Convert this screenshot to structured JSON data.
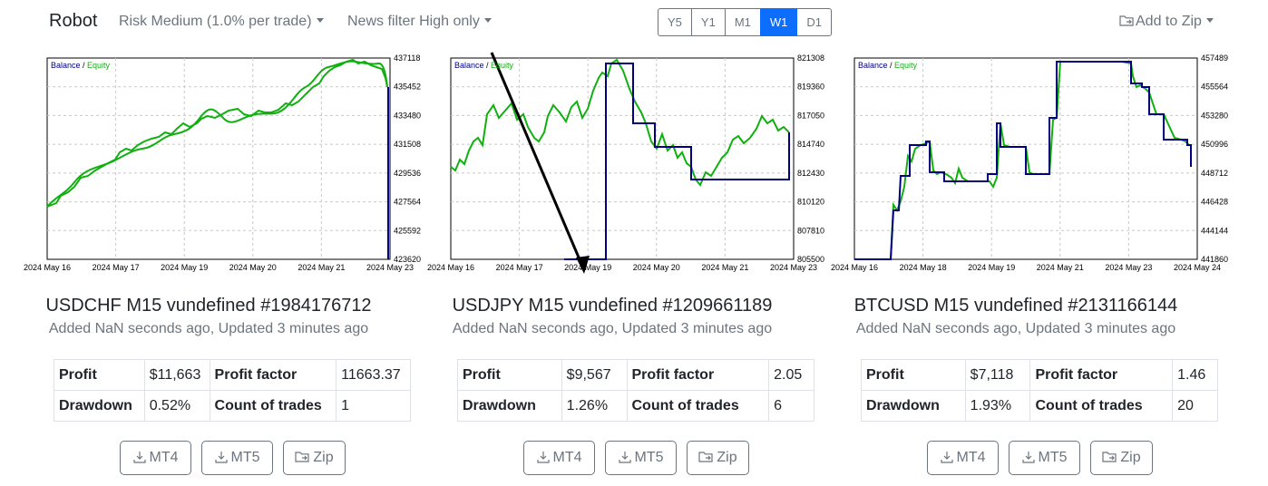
{
  "nav": {
    "brand": "Robot",
    "risk_label": "Risk Medium (1.0% per trade)",
    "news_label": "News filter High only",
    "timeframes": [
      "Y5",
      "Y1",
      "M1",
      "W1",
      "D1"
    ],
    "active_timeframe": "W1",
    "add_to_zip": "Add to Zip"
  },
  "legend": {
    "balance": "Balance",
    "sep": "/",
    "equity": "Equity"
  },
  "colors": {
    "balance": "#000080",
    "equity": "#11b011",
    "accent": "#0d6efd",
    "grid": "#c8c8c8"
  },
  "labels": {
    "profit": "Profit",
    "profit_factor": "Profit factor",
    "drawdown": "Drawdown",
    "count_of_trades": "Count of trades",
    "mt4": "MT4",
    "mt5": "MT5",
    "zip": "Zip"
  },
  "robots": [
    {
      "title": "USDCHF M15 vundefined #1984176712",
      "subtitle": "Added NaN seconds ago, Updated 3 minutes ago",
      "profit": "$11,663",
      "profit_factor": "11663.37",
      "drawdown": "0.52%",
      "count_of_trades": "1",
      "chart": {
        "y_ticks": [
          "437118",
          "435452",
          "433480",
          "431508",
          "429536",
          "427564",
          "425592",
          "423620"
        ],
        "x_ticks": [
          "2024 May 16",
          "2024 May 17",
          "2024 May 19",
          "2024 May 20",
          "2024 May 21",
          "2024 May 23"
        ]
      }
    },
    {
      "title": "USDJPY M15 vundefined #1209661189",
      "subtitle": "Added NaN seconds ago, Updated 3 minutes ago",
      "profit": "$9,567",
      "profit_factor": "2.05",
      "drawdown": "1.26%",
      "count_of_trades": "6",
      "chart": {
        "y_ticks": [
          "821308",
          "819360",
          "817050",
          "814740",
          "812430",
          "810120",
          "807810",
          "805500"
        ],
        "x_ticks": [
          "2024 May 16",
          "2024 May 17",
          "2024 May 19",
          "2024 May 20",
          "2024 May 21",
          "2024 May 23"
        ]
      }
    },
    {
      "title": "BTCUSD M15 vundefined #2131166144",
      "subtitle": "Added NaN seconds ago, Updated 3 minutes ago",
      "profit": "$7,118",
      "profit_factor": "1.46",
      "drawdown": "1.93%",
      "count_of_trades": "20",
      "chart": {
        "y_ticks": [
          "457489",
          "455564",
          "453280",
          "450996",
          "448712",
          "446428",
          "444144",
          "441860"
        ],
        "x_ticks": [
          "2024 May 16",
          "2024 May 18",
          "2024 May 19",
          "2024 May 21",
          "2024 May 23",
          "2024 May 24"
        ]
      }
    }
  ]
}
